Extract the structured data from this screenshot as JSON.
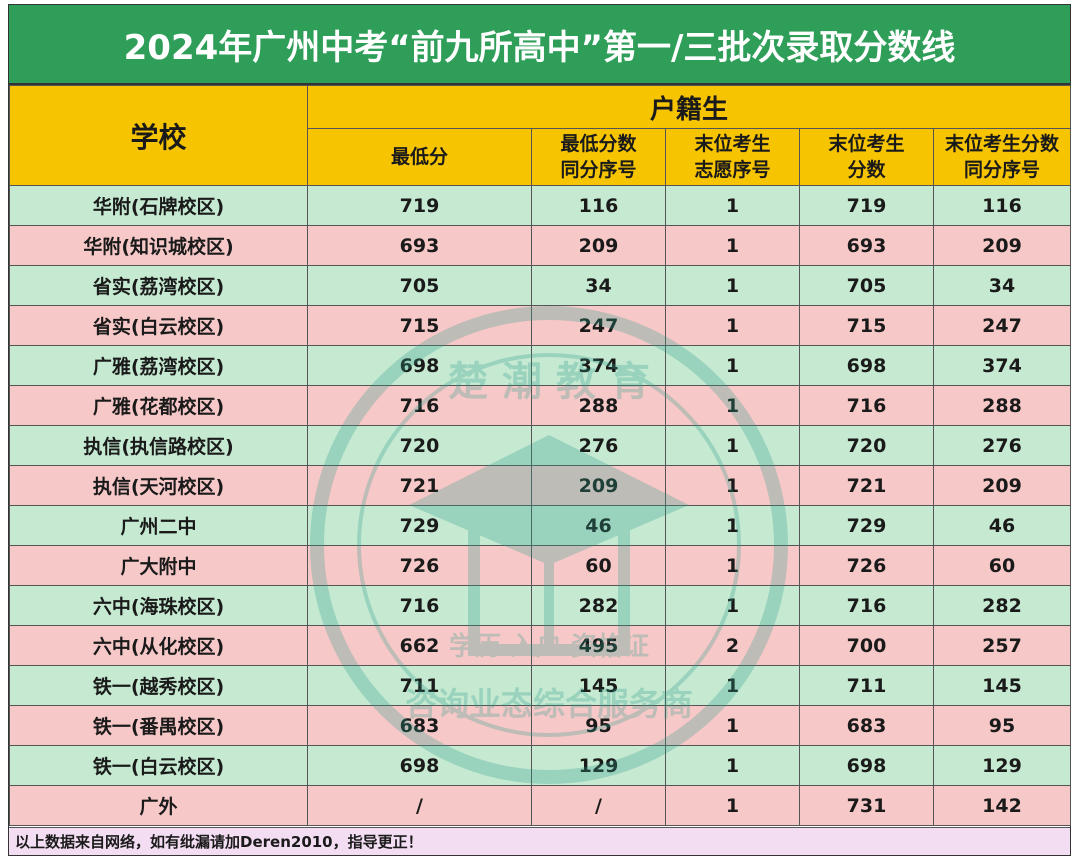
{
  "title": "2024年广州中考“前九所高中”第一/三批次录取分数线",
  "header": {
    "school": "学校",
    "group": "户籍生",
    "columns": [
      {
        "line1": "最低分",
        "line2": ""
      },
      {
        "line1": "最低分数",
        "line2": "同分序号"
      },
      {
        "line1": "末位考生",
        "line2": "志愿序号"
      },
      {
        "line1": "末位考生",
        "line2": "分数"
      },
      {
        "line1": "末位考生分数",
        "line2": "同分序号"
      }
    ]
  },
  "rows": [
    {
      "school": "华附(石牌校区)",
      "min": "719",
      "min_rank": "116",
      "last_choice": "1",
      "last_score": "719",
      "last_rank": "116"
    },
    {
      "school": "华附(知识城校区)",
      "min": "693",
      "min_rank": "209",
      "last_choice": "1",
      "last_score": "693",
      "last_rank": "209"
    },
    {
      "school": "省实(荔湾校区)",
      "min": "705",
      "min_rank": "34",
      "last_choice": "1",
      "last_score": "705",
      "last_rank": "34"
    },
    {
      "school": "省实(白云校区)",
      "min": "715",
      "min_rank": "247",
      "last_choice": "1",
      "last_score": "715",
      "last_rank": "247"
    },
    {
      "school": "广雅(荔湾校区)",
      "min": "698",
      "min_rank": "374",
      "last_choice": "1",
      "last_score": "698",
      "last_rank": "374"
    },
    {
      "school": "广雅(花都校区)",
      "min": "716",
      "min_rank": "288",
      "last_choice": "1",
      "last_score": "716",
      "last_rank": "288"
    },
    {
      "school": "执信(执信路校区)",
      "min": "720",
      "min_rank": "276",
      "last_choice": "1",
      "last_score": "720",
      "last_rank": "276"
    },
    {
      "school": "执信(天河校区)",
      "min": "721",
      "min_rank": "209",
      "last_choice": "1",
      "last_score": "721",
      "last_rank": "209"
    },
    {
      "school": "广州二中",
      "min": "729",
      "min_rank": "46",
      "last_choice": "1",
      "last_score": "729",
      "last_rank": "46"
    },
    {
      "school": "广大附中",
      "min": "726",
      "min_rank": "60",
      "last_choice": "1",
      "last_score": "726",
      "last_rank": "60"
    },
    {
      "school": "六中(海珠校区)",
      "min": "716",
      "min_rank": "282",
      "last_choice": "1",
      "last_score": "716",
      "last_rank": "282"
    },
    {
      "school": "六中(从化校区)",
      "min": "662",
      "min_rank": "495",
      "last_choice": "2",
      "last_score": "700",
      "last_rank": "257"
    },
    {
      "school": "铁一(越秀校区)",
      "min": "711",
      "min_rank": "145",
      "last_choice": "1",
      "last_score": "711",
      "last_rank": "145"
    },
    {
      "school": "铁一(番禺校区)",
      "min": "683",
      "min_rank": "95",
      "last_choice": "1",
      "last_score": "683",
      "last_rank": "95"
    },
    {
      "school": "铁一(白云校区)",
      "min": "698",
      "min_rank": "129",
      "last_choice": "1",
      "last_score": "698",
      "last_rank": "129"
    },
    {
      "school": "广外",
      "min": "/",
      "min_rank": "/",
      "last_choice": "1",
      "last_score": "731",
      "last_rank": "142"
    }
  ],
  "footer": "以上数据来自网络，如有纰漏请加Deren2010，指导更正！",
  "watermark": {
    "top_text": "楚 潮 教 育",
    "middle_text": "学历 入户 资格证",
    "bottom_text": "咨询业态综合服务商"
  },
  "colors": {
    "title_bg": "#2e9e59",
    "header_bg": "#f6c400",
    "row_green": "#c5e9d1",
    "row_pink": "#f7c8c8",
    "footer_bg": "#f3ddf2"
  }
}
